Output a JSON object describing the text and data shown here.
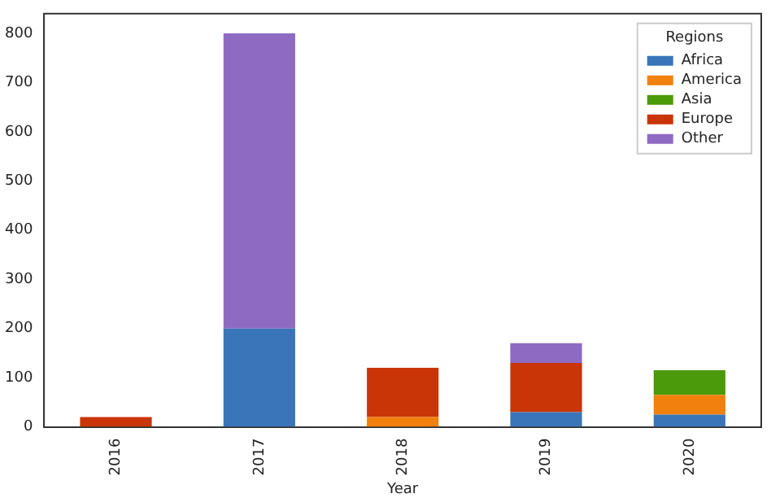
{
  "chart_data": {
    "type": "bar",
    "stacked": true,
    "xlabel": "Year",
    "legend_title": "Regions",
    "legend": "top right",
    "grid": false,
    "categories": [
      "2016",
      "2017",
      "2018",
      "2019",
      "2020"
    ],
    "ylim": [
      0,
      840
    ],
    "yticks": [
      0,
      100,
      200,
      300,
      400,
      500,
      600,
      700,
      800
    ],
    "series": [
      {
        "name": "Africa",
        "color": "#3a75b9",
        "values": [
          0,
          200,
          0,
          30,
          25
        ]
      },
      {
        "name": "America",
        "color": "#f2800c",
        "values": [
          0,
          0,
          20,
          0,
          40
        ]
      },
      {
        "name": "Asia",
        "color": "#4a9a0a",
        "values": [
          0,
          0,
          0,
          0,
          50
        ]
      },
      {
        "name": "Europe",
        "color": "#c93506",
        "values": [
          20,
          0,
          100,
          100,
          0
        ]
      },
      {
        "name": "Other",
        "color": "#8e6ac3",
        "values": [
          0,
          600,
          0,
          40,
          0
        ]
      }
    ]
  }
}
